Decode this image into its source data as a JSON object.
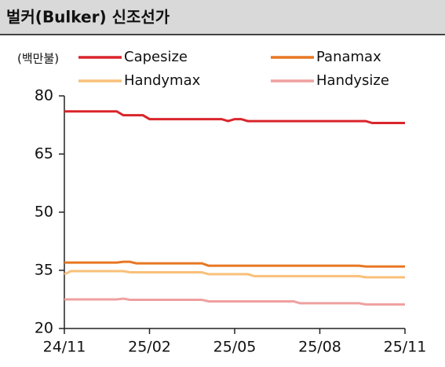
{
  "chart_data": {
    "type": "line",
    "title": "벌커(Bulker) 신조선가",
    "unit": "(백만불)",
    "categories": [
      "24/11",
      null,
      null,
      null,
      null,
      null,
      null,
      null,
      null,
      null,
      null,
      null,
      null,
      "25/02",
      null,
      null,
      null,
      null,
      null,
      null,
      null,
      null,
      null,
      null,
      null,
      null,
      "25/05",
      null,
      null,
      null,
      null,
      null,
      null,
      null,
      null,
      null,
      null,
      null,
      null,
      "25/08",
      null,
      null,
      null,
      null,
      null,
      null,
      null,
      null,
      null,
      null,
      null,
      null,
      "25/11"
    ],
    "series": [
      {
        "name": "Capesize",
        "color": "#d9252b",
        "values": [
          76,
          76,
          76,
          76,
          76,
          76,
          76,
          76,
          76,
          75,
          75,
          75,
          75,
          74,
          74,
          74,
          74,
          74,
          74,
          74,
          74,
          74,
          74,
          74,
          74,
          73.5,
          74,
          74,
          73.5,
          73.5,
          73.5,
          73.5,
          73.5,
          73.5,
          73.5,
          73.5,
          73.5,
          73.5,
          73.5,
          73.5,
          73.5,
          73.5,
          73.5,
          73.5,
          73.5,
          73.5,
          73.5,
          73,
          73,
          73,
          73,
          73,
          73
        ]
      },
      {
        "name": "Panamax",
        "color": "#e87722",
        "values": [
          37,
          37,
          37,
          37,
          37,
          37,
          37,
          37,
          37,
          37.2,
          37.2,
          36.8,
          36.8,
          36.8,
          36.8,
          36.8,
          36.8,
          36.8,
          36.8,
          36.8,
          36.8,
          36.8,
          36.2,
          36.2,
          36.2,
          36.2,
          36.2,
          36.2,
          36.2,
          36.2,
          36.2,
          36.2,
          36.2,
          36.2,
          36.2,
          36.2,
          36.2,
          36.2,
          36.2,
          36.2,
          36.2,
          36.2,
          36.2,
          36.2,
          36.2,
          36.2,
          36,
          36,
          36,
          36,
          36,
          36,
          36
        ]
      },
      {
        "name": "Handymax",
        "color": "#f9c07a",
        "values": [
          34,
          34.8,
          34.8,
          34.8,
          34.8,
          34.8,
          34.8,
          34.8,
          34.8,
          34.8,
          34.5,
          34.5,
          34.5,
          34.5,
          34.5,
          34.5,
          34.5,
          34.5,
          34.5,
          34.5,
          34.5,
          34.5,
          34,
          34,
          34,
          34,
          34,
          34,
          34,
          33.5,
          33.5,
          33.5,
          33.5,
          33.5,
          33.5,
          33.5,
          33.5,
          33.5,
          33.5,
          33.5,
          33.5,
          33.5,
          33.5,
          33.5,
          33.5,
          33.5,
          33.2,
          33.2,
          33.2,
          33.2,
          33.2,
          33.2,
          33.2
        ]
      },
      {
        "name": "Handysize",
        "color": "#f0a0a0",
        "values": [
          27.5,
          27.5,
          27.5,
          27.5,
          27.5,
          27.5,
          27.5,
          27.5,
          27.5,
          27.7,
          27.4,
          27.4,
          27.4,
          27.4,
          27.4,
          27.4,
          27.4,
          27.4,
          27.4,
          27.4,
          27.4,
          27.4,
          27,
          27,
          27,
          27,
          27,
          27,
          27,
          27,
          27,
          27,
          27,
          27,
          27,
          27,
          26.5,
          26.5,
          26.5,
          26.5,
          26.5,
          26.5,
          26.5,
          26.5,
          26.5,
          26.5,
          26.2,
          26.2,
          26.2,
          26.2,
          26.2,
          26.2,
          26.2
        ]
      }
    ],
    "ylim": [
      20,
      80
    ],
    "yticks": [
      20,
      35,
      50,
      65,
      80
    ]
  }
}
